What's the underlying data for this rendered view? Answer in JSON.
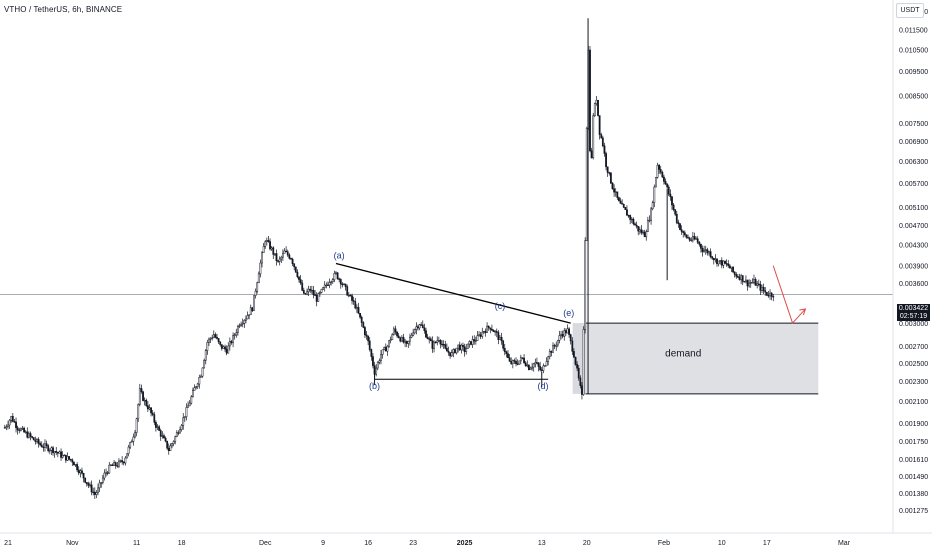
{
  "header": {
    "symbol_title": "VTHO / TetherUS, 6h, BINANCE"
  },
  "axis": {
    "currency_label": "USDT"
  },
  "current_price": {
    "value": "0.003422",
    "countdown": "02:57:19"
  },
  "chart_data": {
    "type": "candlestick",
    "title": "VTHO / TetherUS, 6h, BINANCE",
    "y_scale": "log",
    "ylim": [
      0.00118,
      0.0128
    ],
    "y_ticks": [
      "0.012500",
      "0.011500",
      "0.010500",
      "0.009500",
      "0.008500",
      "0.007500",
      "0.006900",
      "0.006300",
      "0.005700",
      "0.005100",
      "0.004700",
      "0.004300",
      "0.003900",
      "0.003600",
      "0.003000",
      "0.002700",
      "0.002500",
      "0.002300",
      "0.002100",
      "0.001900",
      "0.001750",
      "0.001610",
      "0.001490",
      "0.001380",
      "0.001275"
    ],
    "x_ticks": [
      {
        "label": "21",
        "day": -13
      },
      {
        "label": "Nov",
        "day": -3
      },
      {
        "label": "11",
        "day": 7
      },
      {
        "label": "18",
        "day": 14
      },
      {
        "label": "Dec",
        "day": 27
      },
      {
        "label": "9",
        "day": 36
      },
      {
        "label": "16",
        "day": 43
      },
      {
        "label": "23",
        "day": 50
      },
      {
        "label": "2025",
        "day": 58
      },
      {
        "label": "13",
        "day": 70
      },
      {
        "label": "20",
        "day": 77
      },
      {
        "label": "Feb",
        "day": 89
      },
      {
        "label": "10",
        "day": 98
      },
      {
        "label": "17",
        "day": 105
      },
      {
        "label": "Mar",
        "day": 117
      }
    ],
    "x_day_range": [
      -13.5,
      120
    ],
    "price_path": [
      [
        -13.5,
        0.00186
      ],
      [
        -12.5,
        0.00195
      ],
      [
        -11.5,
        0.00186
      ],
      [
        -10,
        0.0018
      ],
      [
        -8,
        0.00172
      ],
      [
        -6,
        0.00168
      ],
      [
        -4.5,
        0.00163
      ],
      [
        -3,
        0.0016
      ],
      [
        -1.5,
        0.0015
      ],
      [
        -0.5,
        0.00143
      ],
      [
        0.5,
        0.00137
      ],
      [
        1,
        0.0014
      ],
      [
        2,
        0.0015
      ],
      [
        3,
        0.00156
      ],
      [
        4,
        0.00157
      ],
      [
        5,
        0.0016
      ],
      [
        6,
        0.00172
      ],
      [
        6.8,
        0.00185
      ],
      [
        7.5,
        0.0022
      ],
      [
        8.2,
        0.0021
      ],
      [
        9,
        0.00202
      ],
      [
        10,
        0.00188
      ],
      [
        11,
        0.00178
      ],
      [
        12,
        0.00168
      ],
      [
        13,
        0.00178
      ],
      [
        14,
        0.0019
      ],
      [
        15,
        0.00205
      ],
      [
        16,
        0.00222
      ],
      [
        17,
        0.00238
      ],
      [
        18,
        0.00275
      ],
      [
        19,
        0.00285
      ],
      [
        20,
        0.0027
      ],
      [
        21,
        0.00265
      ],
      [
        22,
        0.0028
      ],
      [
        23,
        0.003
      ],
      [
        24,
        0.00308
      ],
      [
        25,
        0.00322
      ],
      [
        26,
        0.0038
      ],
      [
        27,
        0.0044
      ],
      [
        28,
        0.0042
      ],
      [
        29,
        0.00395
      ],
      [
        30,
        0.00415
      ],
      [
        31,
        0.00405
      ],
      [
        32,
        0.00375
      ],
      [
        33,
        0.0034
      ],
      [
        34,
        0.0035
      ],
      [
        35,
        0.00335
      ],
      [
        36,
        0.0035
      ],
      [
        37,
        0.00365
      ],
      [
        38,
        0.00375
      ],
      [
        39,
        0.0036
      ],
      [
        40,
        0.0034
      ],
      [
        41,
        0.00325
      ],
      [
        42,
        0.003
      ],
      [
        43,
        0.00275
      ],
      [
        44,
        0.0024
      ],
      [
        45,
        0.0026
      ],
      [
        46,
        0.0027
      ],
      [
        47,
        0.0029
      ],
      [
        48,
        0.0028
      ],
      [
        49,
        0.0027
      ],
      [
        50,
        0.0029
      ],
      [
        51,
        0.003
      ],
      [
        52,
        0.00285
      ],
      [
        53,
        0.0027
      ],
      [
        54,
        0.0028
      ],
      [
        55,
        0.00265
      ],
      [
        56,
        0.0026
      ],
      [
        57,
        0.0027
      ],
      [
        58,
        0.00265
      ],
      [
        59,
        0.00275
      ],
      [
        60,
        0.0028
      ],
      [
        61,
        0.0029
      ],
      [
        62,
        0.00295
      ],
      [
        63,
        0.00285
      ],
      [
        64,
        0.0027
      ],
      [
        65,
        0.0025
      ],
      [
        66,
        0.0025
      ],
      [
        67,
        0.00255
      ],
      [
        68,
        0.00245
      ],
      [
        69,
        0.0025
      ],
      [
        70,
        0.0024
      ],
      [
        71,
        0.0026
      ],
      [
        72,
        0.0027
      ],
      [
        73,
        0.00285
      ],
      [
        74,
        0.0029
      ],
      [
        75,
        0.0026
      ],
      [
        75.8,
        0.0023
      ],
      [
        76.3,
        0.00212
      ],
      [
        76.8,
        0.0048
      ],
      [
        77.2,
        0.0114
      ],
      [
        77.6,
        0.0056
      ],
      [
        78,
        0.0078
      ],
      [
        78.5,
        0.0084
      ],
      [
        79,
        0.0072
      ],
      [
        79.5,
        0.0068
      ],
      [
        80,
        0.0062
      ],
      [
        81,
        0.0056
      ],
      [
        82,
        0.0052
      ],
      [
        83,
        0.005
      ],
      [
        84,
        0.0048
      ],
      [
        85,
        0.0046
      ],
      [
        86,
        0.0045
      ],
      [
        87,
        0.005
      ],
      [
        88,
        0.0062
      ],
      [
        89,
        0.0058
      ],
      [
        90,
        0.0053
      ],
      [
        91,
        0.0048
      ],
      [
        92,
        0.0045
      ],
      [
        93,
        0.0044
      ],
      [
        94,
        0.0044
      ],
      [
        95,
        0.0042
      ],
      [
        96,
        0.00415
      ],
      [
        97,
        0.004
      ],
      [
        98,
        0.00395
      ],
      [
        99,
        0.0039
      ],
      [
        100,
        0.00375
      ],
      [
        101,
        0.0037
      ],
      [
        102,
        0.0036
      ],
      [
        103,
        0.00362
      ],
      [
        104,
        0.00352
      ],
      [
        105,
        0.00343
      ],
      [
        106,
        0.003422
      ]
    ],
    "spikes": [
      {
        "day": 44,
        "low": 0.00226
      },
      {
        "day": 77.2,
        "low": 0.00217,
        "high": 0.0121
      },
      {
        "day": 89.5,
        "low": 0.00365
      },
      {
        "day": 70,
        "low": 0.00224
      }
    ],
    "annotations": {
      "wave_labels": [
        {
          "label": "(a)",
          "day": 38.5,
          "price": 0.00403
        },
        {
          "label": "(b)",
          "day": 44,
          "price": 0.00222
        },
        {
          "label": "(c)",
          "day": 63.5,
          "price": 0.0032
        },
        {
          "label": "(d)",
          "day": 70.2,
          "price": 0.00222
        },
        {
          "label": "(e)",
          "day": 74.2,
          "price": 0.0031
        }
      ],
      "upper_trendline": [
        [
          38,
          0.00394
        ],
        [
          74.5,
          0.003
        ]
      ],
      "lower_trendline": [
        [
          44,
          0.00232
        ],
        [
          71,
          0.00232
        ]
      ],
      "demand_zone": {
        "label": "demand",
        "day_start": 76.8,
        "day_end": 113,
        "price_top": 0.003,
        "price_bottom": 0.00217
      },
      "shaded_prezone": {
        "day_start": 74.8,
        "day_end": 77.2,
        "price_top": 0.003,
        "price_bottom": 0.00217
      },
      "projection_arrow": [
        [
          106,
          0.0039
        ],
        [
          109,
          0.003
        ],
        [
          111,
          0.0032
        ]
      ]
    },
    "grid": false,
    "legend": "none"
  }
}
